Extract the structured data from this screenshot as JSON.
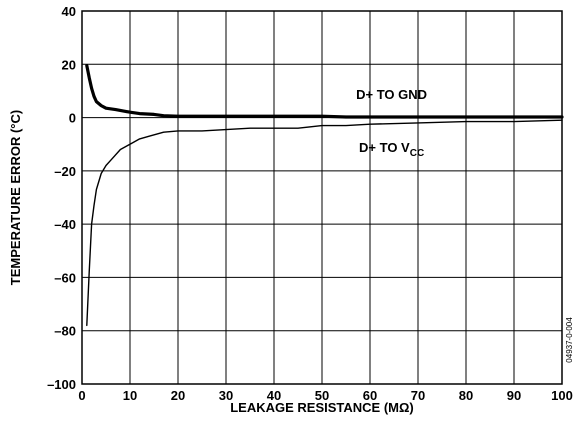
{
  "chart_data": {
    "type": "line",
    "title": "",
    "xlabel": "LEAKAGE RESISTANCE (MΩ)",
    "ylabel": "TEMPERATURE ERROR (°C)",
    "xlim": [
      0,
      100
    ],
    "ylim": [
      -100,
      40
    ],
    "x_ticks": [
      0,
      10,
      20,
      30,
      40,
      50,
      60,
      70,
      80,
      90,
      100
    ],
    "y_ticks": [
      40,
      20,
      0,
      -20,
      -40,
      -60,
      -80,
      -100
    ],
    "x_tick_labels": [
      "0",
      "10",
      "20",
      "30",
      "40",
      "50",
      "60",
      "70",
      "80",
      "90",
      "100"
    ],
    "y_tick_labels": [
      "40",
      "20",
      "0",
      "–20",
      "–40",
      "–60",
      "–80",
      "–100"
    ],
    "grid": true,
    "legend": "none",
    "series": [
      {
        "name": "D+ TO GND",
        "label_base": "D+ TO GND",
        "label_sub": "",
        "color": "#000000",
        "stroke": "thick",
        "x": [
          1,
          1.5,
          2,
          2.5,
          3,
          4,
          5,
          7,
          10,
          12,
          15,
          17,
          20,
          30,
          40,
          50,
          55,
          60,
          70,
          80,
          90,
          100
        ],
        "y": [
          19.5,
          15,
          11,
          8,
          6,
          4.5,
          3.5,
          3,
          2,
          1.5,
          1.2,
          0.7,
          0.5,
          0.5,
          0.5,
          0.5,
          0.2,
          0.2,
          0.2,
          0.2,
          0.2,
          0.2
        ]
      },
      {
        "name": "D+ TO VCC",
        "label_base": "D+ TO V",
        "label_sub": "CC",
        "color": "#000000",
        "stroke": "thin",
        "x": [
          1,
          1.5,
          2,
          2.5,
          3,
          4,
          5,
          6,
          8,
          10,
          12,
          14,
          17,
          20,
          25,
          30,
          35,
          40,
          45,
          50,
          55,
          60,
          70,
          80,
          90,
          100
        ],
        "y": [
          -78,
          -58,
          -40,
          -33,
          -27,
          -21,
          -18,
          -16,
          -12,
          -10,
          -8,
          -7,
          -5.5,
          -5,
          -5,
          -4.5,
          -4,
          -4,
          -4,
          -3,
          -3,
          -2.5,
          -2,
          -1.5,
          -1.5,
          -1
        ]
      }
    ],
    "annotation": "04937-0-004"
  }
}
